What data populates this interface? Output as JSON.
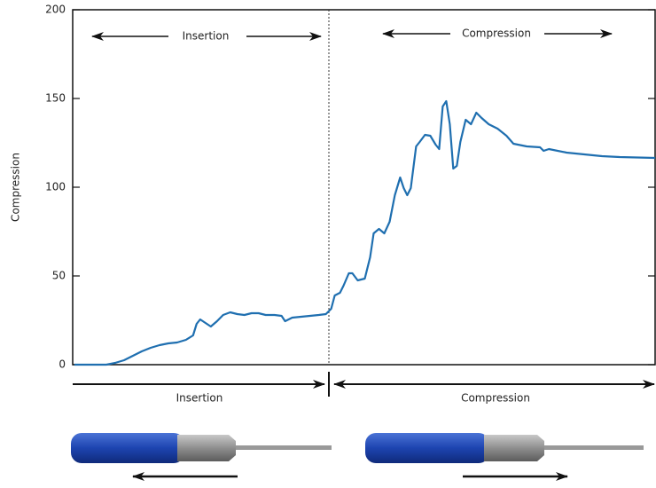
{
  "chart_data": {
    "type": "line",
    "y_label": "Compression",
    "annotations": {
      "top_left": "Insertion",
      "top_right": "Compression",
      "bottom_left": "Insertion",
      "bottom_right": "Compression"
    },
    "color": "#1f6fb0",
    "xlim": [
      0,
      658
    ],
    "x": [
      2,
      38,
      48,
      58,
      68,
      78,
      88,
      98,
      108,
      118,
      128,
      136,
      140,
      144,
      150,
      156,
      163,
      170,
      178,
      186,
      194,
      202,
      210,
      218,
      228,
      236,
      240,
      248,
      258,
      268,
      278,
      286,
      292,
      296,
      302,
      306,
      312,
      316,
      322,
      330,
      336,
      340,
      346,
      352,
      358,
      364,
      370,
      374,
      378,
      382,
      388,
      392,
      398,
      404,
      410,
      414,
      418,
      422,
      426,
      430,
      434,
      438,
      444,
      450,
      456,
      462,
      470,
      480,
      490,
      498,
      513,
      528,
      532,
      538,
      558,
      578,
      598,
      618,
      658
    ],
    "values": [
      0,
      0,
      1,
      2.5,
      5,
      7.5,
      9.5,
      11,
      12,
      12.5,
      14,
      16.5,
      23,
      25.5,
      23.5,
      21.5,
      24.5,
      28,
      29.5,
      28.5,
      28,
      29,
      29,
      28,
      28,
      27.5,
      24.5,
      26.5,
      27,
      27.5,
      28,
      28.5,
      31.5,
      39,
      40.5,
      44.5,
      51.5,
      51.5,
      47.5,
      48.5,
      60.5,
      74,
      76.5,
      74,
      80.5,
      95.5,
      105.5,
      99.5,
      95.5,
      99.5,
      123,
      125.5,
      129.5,
      129,
      124,
      121.5,
      145.5,
      148.5,
      135.5,
      110.5,
      112,
      125.5,
      138,
      135.5,
      142,
      139,
      135.5,
      133,
      129,
      124.5,
      123,
      122.5,
      120.5,
      121.5,
      119.5,
      118.5,
      117.5,
      117,
      116.5
    ],
    "ylim": [
      0,
      200
    ],
    "yticks": [
      0,
      50,
      100,
      150,
      200
    ]
  }
}
